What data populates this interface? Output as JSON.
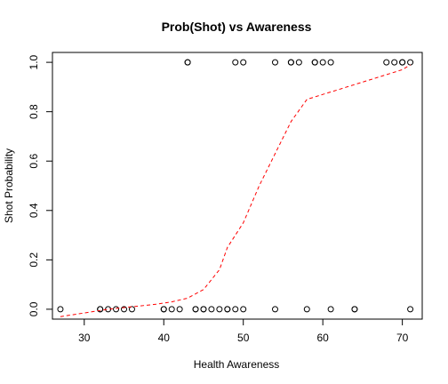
{
  "chart_data": {
    "type": "scatter",
    "title": "Prob(Shot) vs Awareness",
    "xlabel": "Health Awareness",
    "ylabel": "Shot Probability",
    "xlim": [
      26,
      72.5
    ],
    "ylim": [
      -0.04,
      1.04
    ],
    "xticks": [
      30,
      40,
      50,
      60,
      70
    ],
    "yticks": [
      0.0,
      0.2,
      0.4,
      0.6,
      0.8,
      1.0
    ],
    "xtick_labels": [
      "30",
      "40",
      "50",
      "60",
      "70"
    ],
    "ytick_labels": [
      "0.0",
      "0.2",
      "0.4",
      "0.6",
      "0.8",
      "1.0"
    ],
    "grid": false,
    "series": [
      {
        "kind": "points",
        "marker": "open-circle",
        "color": "#000000",
        "points": [
          [
            27,
            0
          ],
          [
            32,
            0
          ],
          [
            32,
            0
          ],
          [
            33,
            0
          ],
          [
            34,
            0
          ],
          [
            35,
            0
          ],
          [
            36,
            0
          ],
          [
            40,
            0
          ],
          [
            40,
            0
          ],
          [
            41,
            0
          ],
          [
            42,
            0
          ],
          [
            44,
            0
          ],
          [
            44,
            0
          ],
          [
            45,
            0
          ],
          [
            45,
            0
          ],
          [
            46,
            0
          ],
          [
            47,
            0
          ],
          [
            48,
            0
          ],
          [
            48,
            0
          ],
          [
            49,
            0
          ],
          [
            50,
            0
          ],
          [
            54,
            0
          ],
          [
            58,
            0
          ],
          [
            61,
            0
          ],
          [
            64,
            0
          ],
          [
            64,
            0
          ],
          [
            71,
            0
          ],
          [
            43,
            1
          ],
          [
            43,
            1
          ],
          [
            49,
            1
          ],
          [
            50,
            1
          ],
          [
            54,
            1
          ],
          [
            56,
            1
          ],
          [
            56,
            1
          ],
          [
            57,
            1
          ],
          [
            59,
            1
          ],
          [
            59,
            1
          ],
          [
            60,
            1
          ],
          [
            61,
            1
          ],
          [
            68,
            1
          ],
          [
            69,
            1
          ],
          [
            70,
            1
          ],
          [
            70,
            1
          ],
          [
            71,
            1
          ]
        ]
      },
      {
        "kind": "line",
        "style": "dashed",
        "color": "#ff0000",
        "points": [
          [
            27,
            -0.03
          ],
          [
            30,
            -0.015
          ],
          [
            33,
            0.0
          ],
          [
            36,
            0.01
          ],
          [
            39,
            0.02
          ],
          [
            41,
            0.03
          ],
          [
            43,
            0.045
          ],
          [
            45,
            0.08
          ],
          [
            47,
            0.16
          ],
          [
            48,
            0.25
          ],
          [
            50,
            0.35
          ],
          [
            52,
            0.5
          ],
          [
            54,
            0.63
          ],
          [
            56,
            0.76
          ],
          [
            58,
            0.85
          ],
          [
            60,
            0.87
          ],
          [
            62,
            0.89
          ],
          [
            64,
            0.91
          ],
          [
            66,
            0.93
          ],
          [
            68,
            0.95
          ],
          [
            70,
            0.97
          ],
          [
            71,
            0.99
          ]
        ]
      }
    ]
  }
}
